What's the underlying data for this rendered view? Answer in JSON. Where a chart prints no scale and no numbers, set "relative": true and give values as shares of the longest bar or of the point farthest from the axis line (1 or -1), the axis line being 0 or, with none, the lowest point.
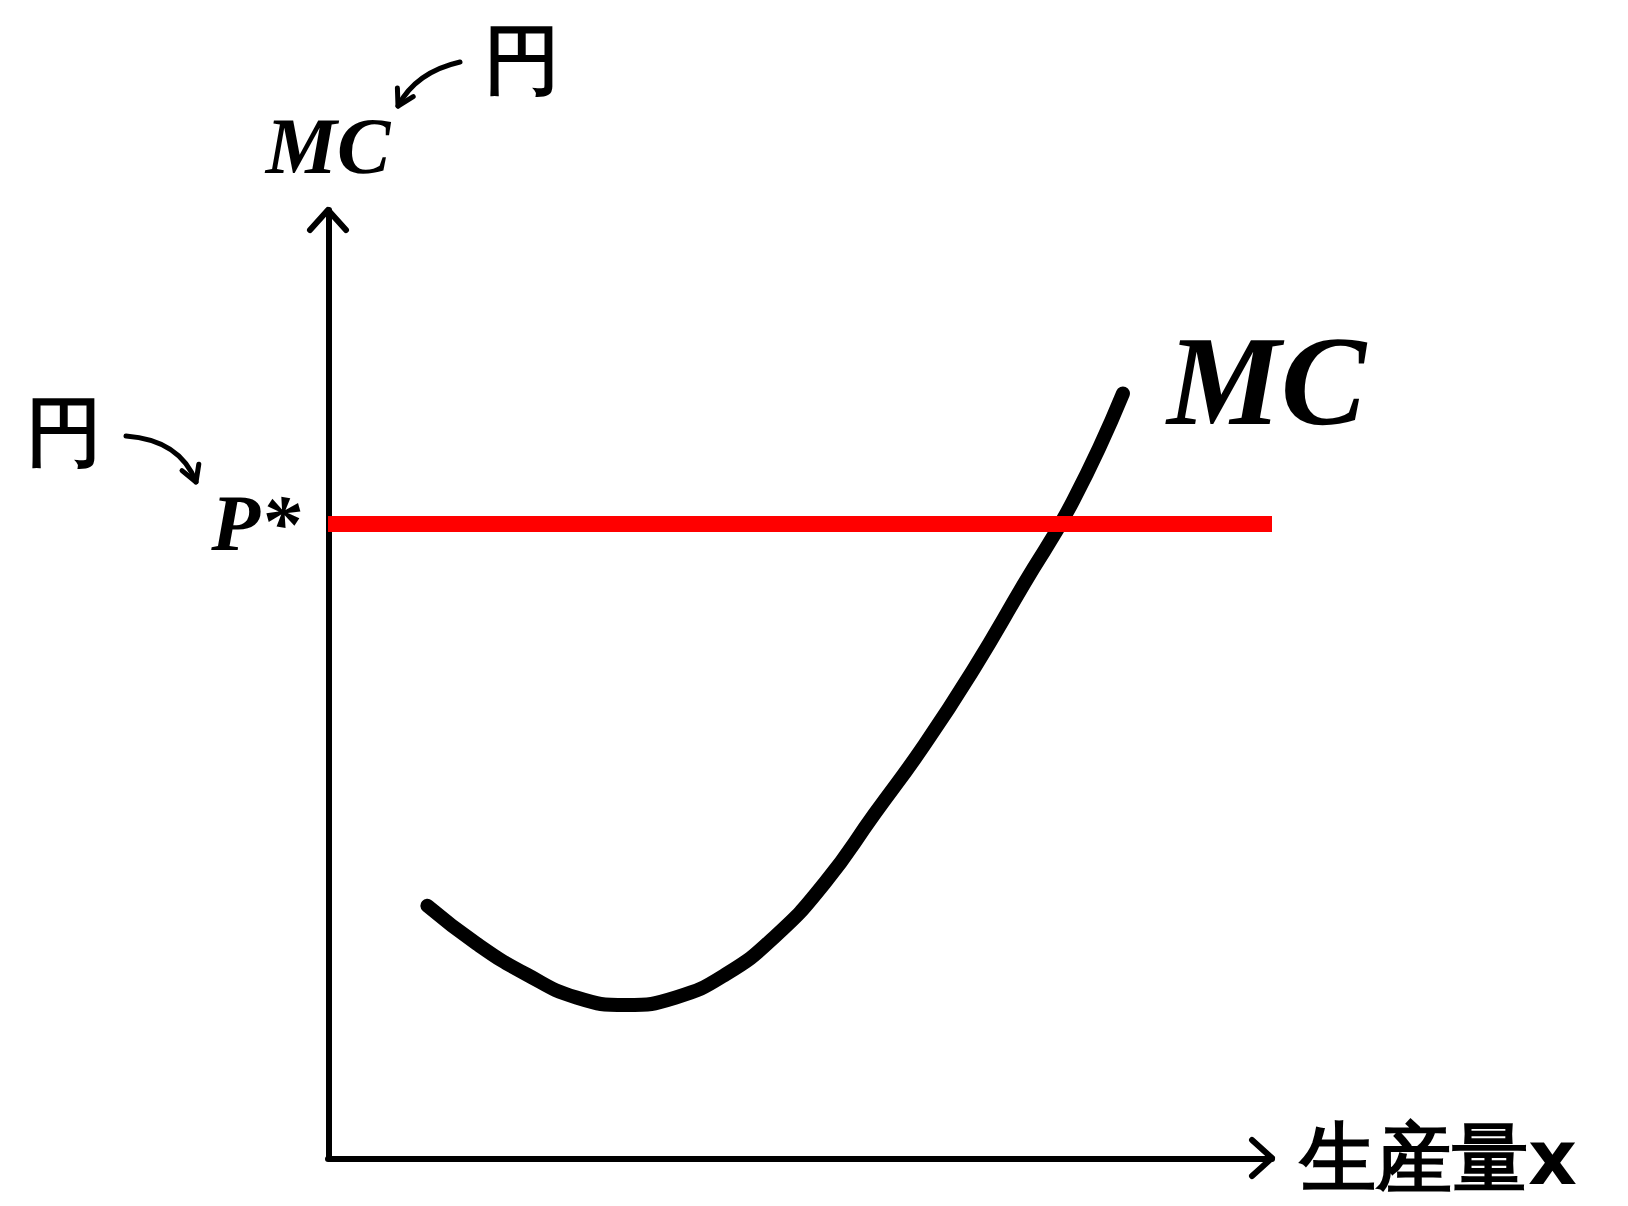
{
  "chart_data": {
    "type": "line",
    "xlabel": "生産量x",
    "ylabel": "MC",
    "annotations": [
      "円",
      "円"
    ],
    "categories": [
      null,
      null,
      null,
      null,
      null,
      null,
      null,
      null,
      null,
      null,
      null,
      null,
      null,
      null,
      null,
      null,
      null,
      null,
      null,
      null
    ],
    "series": [
      {
        "name": "MC",
        "color": "#000000",
        "values": [
          null,
          null,
          0.33,
          0.28,
          0.24,
          0.21,
          0.2,
          0.21,
          0.24,
          0.29,
          0.36,
          0.45,
          0.54,
          0.64,
          0.75,
          0.86,
          1,
          null,
          null,
          null
        ]
      }
    ],
    "relative": true,
    "marker": "none",
    "ref_lines": [
      {
        "axis": "y",
        "value": 0.83,
        "label": "P*",
        "color": "#ff0000"
      }
    ]
  }
}
